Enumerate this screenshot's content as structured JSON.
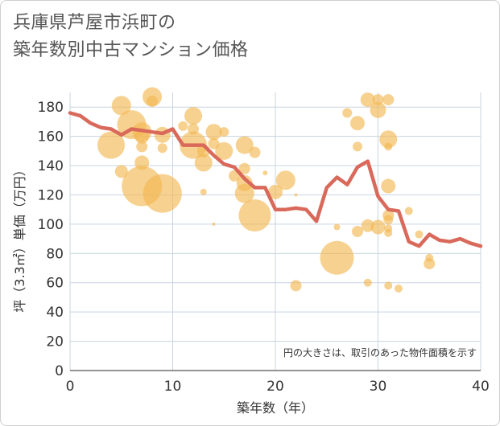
{
  "header": {
    "title_line1": "兵庫県芦屋市浜町の",
    "title_line2": "築年数別中古マンション価格"
  },
  "chart_data": {
    "type": "scatter",
    "xlabel": "築年数（年）",
    "ylabel": "坪（3.3㎡）単価（万円）",
    "xlim": [
      0,
      40
    ],
    "ylim": [
      0,
      190
    ],
    "xticks": [
      0,
      10,
      20,
      30,
      40
    ],
    "yticks": [
      0,
      20,
      40,
      60,
      80,
      100,
      120,
      140,
      160,
      180
    ],
    "grid": true,
    "note": "円の大きさは、取引のあった物件面積を示す",
    "colors": {
      "bubble": "#f2b855",
      "line": "#d9695a",
      "grid": "#c8d4e0"
    },
    "bubbles": [
      {
        "x": 5,
        "y": 181,
        "size": 12
      },
      {
        "x": 8,
        "y": 187,
        "size": 12
      },
      {
        "x": 8,
        "y": 184,
        "size": 7
      },
      {
        "x": 6,
        "y": 168,
        "size": 18
      },
      {
        "x": 7,
        "y": 163,
        "size": 12
      },
      {
        "x": 7,
        "y": 160,
        "size": 9
      },
      {
        "x": 7,
        "y": 153,
        "size": 7
      },
      {
        "x": 9,
        "y": 161,
        "size": 10
      },
      {
        "x": 9,
        "y": 152,
        "size": 6
      },
      {
        "x": 4,
        "y": 154,
        "size": 17
      },
      {
        "x": 7,
        "y": 142,
        "size": 9
      },
      {
        "x": 5,
        "y": 136,
        "size": 8
      },
      {
        "x": 7,
        "y": 126,
        "size": 25
      },
      {
        "x": 9,
        "y": 121,
        "size": 24
      },
      {
        "x": 11,
        "y": 167,
        "size": 6
      },
      {
        "x": 12,
        "y": 174,
        "size": 11
      },
      {
        "x": 12,
        "y": 165,
        "size": 7
      },
      {
        "x": 12,
        "y": 154,
        "size": 17
      },
      {
        "x": 13,
        "y": 150,
        "size": 8
      },
      {
        "x": 13,
        "y": 142,
        "size": 11
      },
      {
        "x": 14,
        "y": 163,
        "size": 10
      },
      {
        "x": 14,
        "y": 155,
        "size": 7
      },
      {
        "x": 15,
        "y": 163,
        "size": 6
      },
      {
        "x": 15,
        "y": 150,
        "size": 11
      },
      {
        "x": 16,
        "y": 133,
        "size": 7
      },
      {
        "x": 17,
        "y": 154,
        "size": 11
      },
      {
        "x": 17,
        "y": 138,
        "size": 7
      },
      {
        "x": 17,
        "y": 128,
        "size": 10
      },
      {
        "x": 17,
        "y": 121,
        "size": 12
      },
      {
        "x": 18,
        "y": 149,
        "size": 7
      },
      {
        "x": 18,
        "y": 106,
        "size": 20
      },
      {
        "x": 19,
        "y": 135,
        "size": 3
      },
      {
        "x": 20,
        "y": 122,
        "size": 9
      },
      {
        "x": 21,
        "y": 130,
        "size": 12
      },
      {
        "x": 13,
        "y": 122,
        "size": 4
      },
      {
        "x": 14,
        "y": 100,
        "size": 2
      },
      {
        "x": 22,
        "y": 120,
        "size": 2
      },
      {
        "x": 22,
        "y": 58,
        "size": 7
      },
      {
        "x": 26,
        "y": 77,
        "size": 21
      },
      {
        "x": 26,
        "y": 98,
        "size": 4
      },
      {
        "x": 27,
        "y": 176,
        "size": 6
      },
      {
        "x": 28,
        "y": 169,
        "size": 9
      },
      {
        "x": 28,
        "y": 153,
        "size": 6
      },
      {
        "x": 28,
        "y": 95,
        "size": 7
      },
      {
        "x": 29,
        "y": 185,
        "size": 9
      },
      {
        "x": 29,
        "y": 99,
        "size": 8
      },
      {
        "x": 29,
        "y": 60,
        "size": 5
      },
      {
        "x": 30,
        "y": 185,
        "size": 7
      },
      {
        "x": 30,
        "y": 178,
        "size": 10
      },
      {
        "x": 30,
        "y": 98,
        "size": 9
      },
      {
        "x": 31,
        "y": 185,
        "size": 7
      },
      {
        "x": 31,
        "y": 158,
        "size": 11
      },
      {
        "x": 31,
        "y": 153,
        "size": 5
      },
      {
        "x": 31,
        "y": 126,
        "size": 9
      },
      {
        "x": 31,
        "y": 106,
        "size": 7
      },
      {
        "x": 31,
        "y": 103,
        "size": 6
      },
      {
        "x": 31,
        "y": 97,
        "size": 5
      },
      {
        "x": 31,
        "y": 94,
        "size": 5
      },
      {
        "x": 31,
        "y": 58,
        "size": 5
      },
      {
        "x": 32,
        "y": 56,
        "size": 5
      },
      {
        "x": 33,
        "y": 109,
        "size": 5
      },
      {
        "x": 34,
        "y": 93,
        "size": 5
      },
      {
        "x": 35,
        "y": 77,
        "size": 5
      },
      {
        "x": 35,
        "y": 73,
        "size": 7
      }
    ],
    "line": {
      "x": [
        0,
        1,
        2,
        3,
        4,
        5,
        6,
        7,
        8,
        9,
        10,
        11,
        12,
        13,
        14,
        15,
        16,
        17,
        18,
        19,
        20,
        21,
        22,
        23,
        24,
        25,
        26,
        27,
        28,
        29,
        30,
        31,
        32,
        33,
        34,
        35,
        36,
        37,
        38,
        39,
        40
      ],
      "y": [
        176,
        174,
        169,
        166,
        165,
        161,
        165,
        164,
        163,
        162,
        165,
        154,
        154,
        154,
        147,
        141,
        139,
        131,
        125,
        125,
        110,
        110,
        111,
        110,
        102,
        125,
        132,
        127,
        139,
        143,
        119,
        110,
        109,
        88,
        85,
        93,
        89,
        88,
        90,
        87,
        85
      ]
    }
  }
}
